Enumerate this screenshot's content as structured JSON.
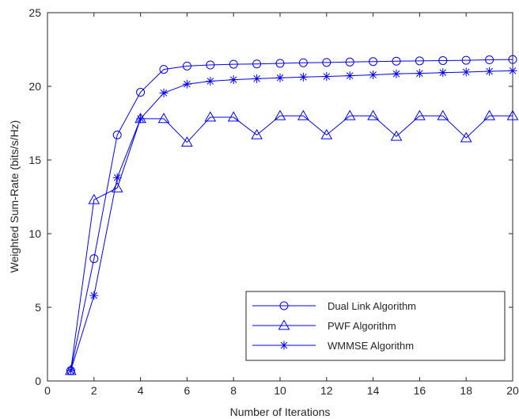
{
  "chart_data": {
    "type": "line",
    "title": "",
    "xlabel": "Number of Iterations",
    "ylabel": "Weighted Sum-Rate (bits/s/Hz)",
    "xlim": [
      0,
      20
    ],
    "ylim": [
      0,
      25
    ],
    "xticks": [
      0,
      2,
      4,
      6,
      8,
      10,
      12,
      14,
      16,
      18,
      20
    ],
    "yticks": [
      0,
      5,
      10,
      15,
      20,
      25
    ],
    "grid": false,
    "legend_position": "bottom-right",
    "line_color": "#0000ff",
    "x": [
      1,
      2,
      3,
      4,
      5,
      6,
      7,
      8,
      9,
      10,
      11,
      12,
      13,
      14,
      15,
      16,
      17,
      18,
      19,
      20
    ],
    "series": [
      {
        "name": "Dual Link Algorithm",
        "marker": "circle",
        "values": [
          0.7,
          8.3,
          16.7,
          19.6,
          21.15,
          21.38,
          21.45,
          21.5,
          21.52,
          21.56,
          21.6,
          21.62,
          21.65,
          21.68,
          21.71,
          21.73,
          21.75,
          21.77,
          21.8,
          21.82
        ]
      },
      {
        "name": "PWF Algorithm",
        "marker": "triangle",
        "values": [
          0.7,
          12.3,
          13.1,
          17.8,
          17.8,
          16.2,
          17.9,
          17.9,
          16.7,
          18.0,
          18.0,
          16.7,
          18.0,
          18.0,
          16.6,
          18.0,
          18.0,
          16.5,
          18.0,
          18.0
        ]
      },
      {
        "name": "WMMSE Algorithm",
        "marker": "asterisk",
        "values": [
          0.7,
          5.8,
          13.8,
          17.8,
          19.55,
          20.15,
          20.35,
          20.45,
          20.52,
          20.58,
          20.63,
          20.67,
          20.72,
          20.78,
          20.85,
          20.88,
          20.93,
          20.97,
          21.02,
          21.06
        ]
      }
    ]
  }
}
